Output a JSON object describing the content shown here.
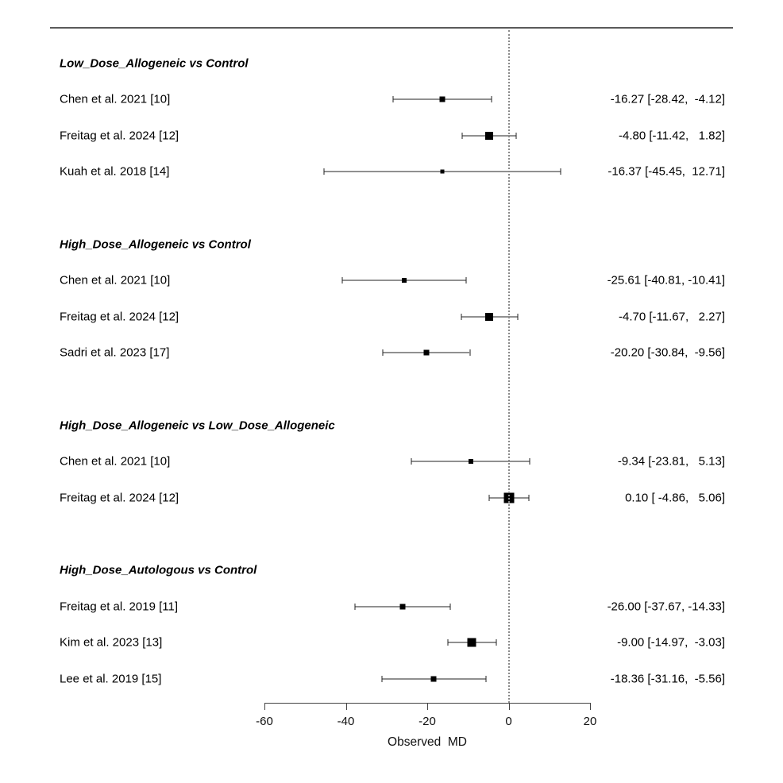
{
  "chart_data": {
    "type": "forest",
    "title": "",
    "xlabel": "Observed  MD",
    "x_ticks": [
      -60,
      -40,
      -20,
      0,
      20
    ],
    "x_range": [
      -60,
      20
    ],
    "reference_line_x": 0,
    "effect_measure": "MD",
    "groups": [
      {
        "header": "Low_Dose_Allogeneic vs Control",
        "studies": [
          {
            "label": "Chen et al. 2021 [10]",
            "md": -16.27,
            "ci_low": -28.42,
            "ci_high": -4.12,
            "annotation": "-16.27 [-28.42,  -4.12]",
            "marker_size": 7
          },
          {
            "label": "Freitag et al. 2024 [12]",
            "md": -4.8,
            "ci_low": -11.42,
            "ci_high": 1.82,
            "annotation": "-4.80 [-11.42,   1.82]",
            "marker_size": 10
          },
          {
            "label": "Kuah et al. 2018 [14]",
            "md": -16.37,
            "ci_low": -45.45,
            "ci_high": 12.71,
            "annotation": "-16.37 [-45.45,  12.71]",
            "marker_size": 5
          }
        ]
      },
      {
        "header": "High_Dose_Allogeneic vs Control",
        "studies": [
          {
            "label": "Chen et al. 2021 [10]",
            "md": -25.61,
            "ci_low": -40.81,
            "ci_high": -10.41,
            "annotation": "-25.61 [-40.81, -10.41]",
            "marker_size": 6
          },
          {
            "label": "Freitag et al. 2024 [12]",
            "md": -4.7,
            "ci_low": -11.67,
            "ci_high": 2.27,
            "annotation": "-4.70 [-11.67,   2.27]",
            "marker_size": 10
          },
          {
            "label": "Sadri et al. 2023 [17]",
            "md": -20.2,
            "ci_low": -30.84,
            "ci_high": -9.56,
            "annotation": "-20.20 [-30.84,  -9.56]",
            "marker_size": 7
          }
        ]
      },
      {
        "header": "High_Dose_Allogeneic vs Low_Dose_Allogeneic",
        "studies": [
          {
            "label": "Chen et al. 2021 [10]",
            "md": -9.34,
            "ci_low": -23.81,
            "ci_high": 5.13,
            "annotation": "-9.34 [-23.81,   5.13]",
            "marker_size": 6
          },
          {
            "label": "Freitag et al. 2024 [12]",
            "md": 0.1,
            "ci_low": -4.86,
            "ci_high": 5.06,
            "annotation": "0.10 [ -4.86,   5.06]",
            "marker_size": 13
          }
        ]
      },
      {
        "header": "High_Dose_Autologous vs Control",
        "studies": [
          {
            "label": "Freitag et al. 2019 [11]",
            "md": -26.0,
            "ci_low": -37.67,
            "ci_high": -14.33,
            "annotation": "-26.00 [-37.67, -14.33]",
            "marker_size": 7
          },
          {
            "label": "Kim et al. 2023 [13]",
            "md": -9.0,
            "ci_low": -14.97,
            "ci_high": -3.03,
            "annotation": "-9.00 [-14.97,  -3.03]",
            "marker_size": 11
          },
          {
            "label": "Lee et al. 2019 [15]",
            "md": -18.36,
            "ci_low": -31.16,
            "ci_high": -5.56,
            "annotation": "-18.36 [-31.16,  -5.56]",
            "marker_size": 7
          }
        ]
      }
    ]
  }
}
